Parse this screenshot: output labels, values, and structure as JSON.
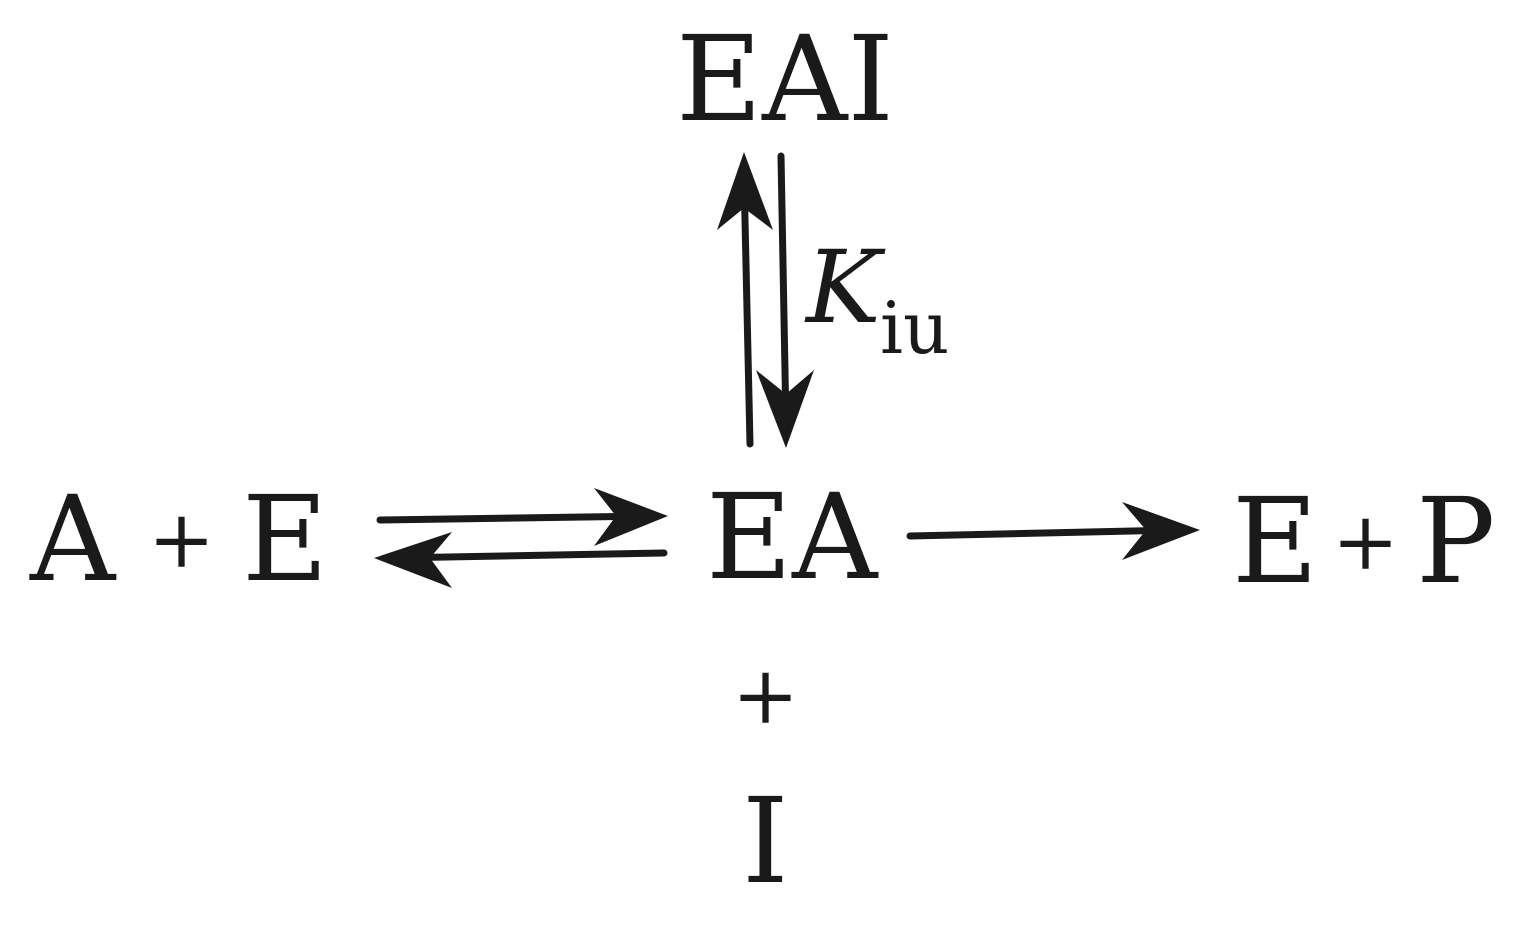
{
  "species": {
    "eai": "EAI",
    "a": "A",
    "e": "E",
    "ea": "EA",
    "e_product": "E",
    "p": "P",
    "i": "I"
  },
  "operators": {
    "plus_left": "+",
    "plus_right": "+",
    "plus_below": "+"
  },
  "constant": {
    "symbol": "K",
    "subscript": "iu"
  },
  "colors": {
    "ink": "#1a1a1a",
    "background": "#ffffff"
  }
}
